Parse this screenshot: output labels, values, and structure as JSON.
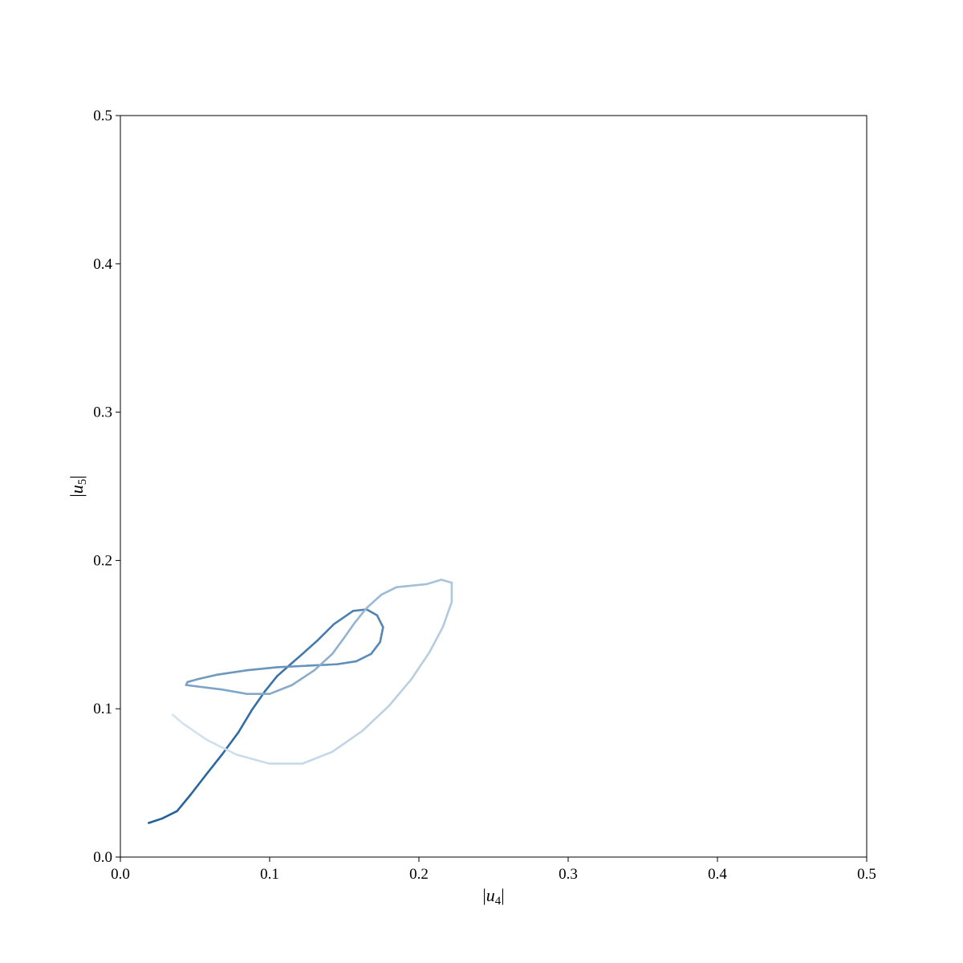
{
  "chart_data": {
    "type": "line",
    "title": "",
    "xlabel": {
      "prefix": "|",
      "var": "u",
      "sub": "4",
      "suffix": "|"
    },
    "ylabel": {
      "prefix": "|",
      "var": "u",
      "sub": "5",
      "suffix": "|"
    },
    "xlim": [
      0.0,
      0.5
    ],
    "ylim": [
      0.0,
      0.5
    ],
    "xticks": [
      "0.0",
      "0.1",
      "0.2",
      "0.3",
      "0.4",
      "0.5"
    ],
    "yticks": [
      "0.0",
      "0.1",
      "0.2",
      "0.3",
      "0.4",
      "0.5"
    ],
    "grid": false,
    "legend": "none",
    "color_start": "#1f5f9a",
    "color_end": "#d4e3ef",
    "series": [
      {
        "x": [
          0.019,
          0.028,
          0.038,
          0.047,
          0.057,
          0.068,
          0.079,
          0.088,
          0.097,
          0.105,
          0.114,
          0.122,
          0.132,
          0.143,
          0.156,
          0.165,
          0.172,
          0.176,
          0.174,
          0.168,
          0.158,
          0.145,
          0.125,
          0.105,
          0.085,
          0.065,
          0.052,
          0.045,
          0.044,
          0.052,
          0.068,
          0.085,
          0.1,
          0.115,
          0.13,
          0.142,
          0.15,
          0.157,
          0.165,
          0.175,
          0.185,
          0.195,
          0.205,
          0.215,
          0.222,
          0.222,
          0.216,
          0.207,
          0.195,
          0.18,
          0.162,
          0.142,
          0.122,
          0.1,
          0.078,
          0.058,
          0.042,
          0.035
        ],
        "y": [
          0.023,
          0.026,
          0.031,
          0.042,
          0.055,
          0.069,
          0.084,
          0.099,
          0.112,
          0.122,
          0.13,
          0.137,
          0.146,
          0.157,
          0.166,
          0.167,
          0.163,
          0.155,
          0.145,
          0.137,
          0.132,
          0.13,
          0.129,
          0.128,
          0.126,
          0.123,
          0.12,
          0.118,
          0.116,
          0.115,
          0.113,
          0.11,
          0.11,
          0.116,
          0.126,
          0.137,
          0.148,
          0.158,
          0.168,
          0.177,
          0.182,
          0.183,
          0.184,
          0.187,
          0.185,
          0.172,
          0.155,
          0.138,
          0.12,
          0.102,
          0.085,
          0.071,
          0.063,
          0.063,
          0.069,
          0.079,
          0.09,
          0.096
        ]
      }
    ]
  }
}
